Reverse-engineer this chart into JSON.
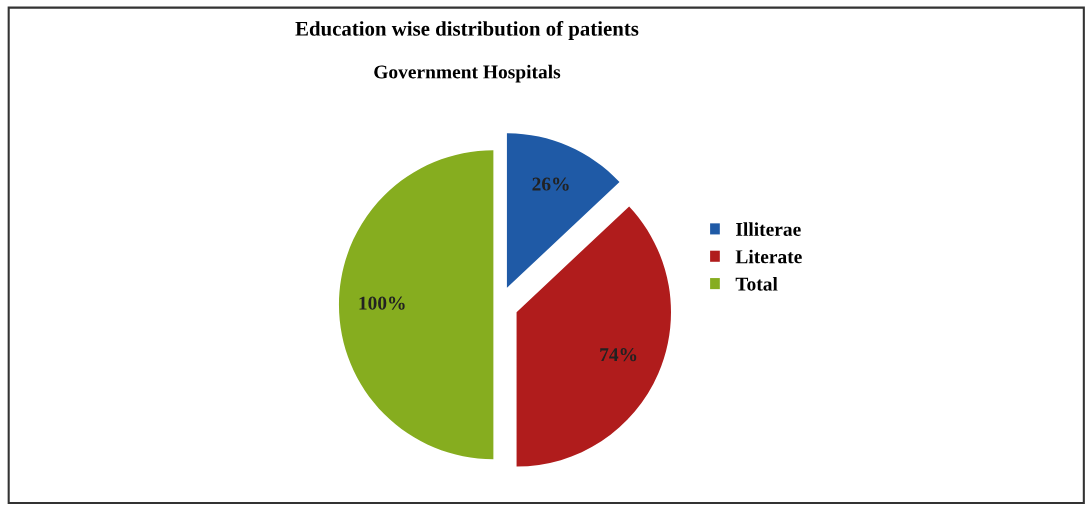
{
  "chart_data": {
    "type": "pie",
    "title": "Education wise distribution of patients",
    "subtitle": "Government Hospitals",
    "categories": [
      "Illiterae",
      "Literate",
      "Total"
    ],
    "values": [
      26,
      74,
      100
    ],
    "colors": [
      "#1f5aa6",
      "#b01c1c",
      "#86ad1f"
    ],
    "value_labels": [
      "26%",
      "74%",
      "100%"
    ],
    "legend": "right"
  }
}
